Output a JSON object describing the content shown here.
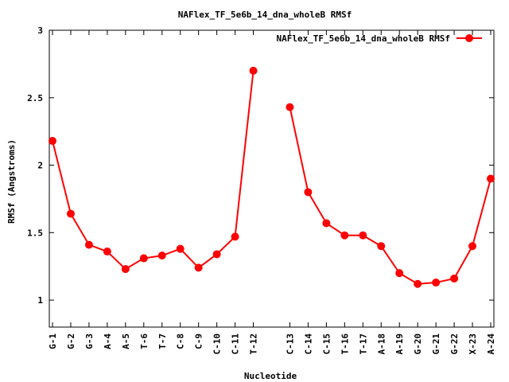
{
  "chart_data": {
    "type": "line",
    "title": "NAFlex_TF_5e6b_14_dna_wholeB RMSf",
    "xlabel": "Nucleotide",
    "ylabel": "RMSf (Angstroms)",
    "ylim": [
      0.8,
      3.0
    ],
    "yticks": [
      "1",
      "1.5",
      "2",
      "2.5",
      "3"
    ],
    "ytick_values": [
      1,
      1.5,
      2,
      2.5,
      3
    ],
    "legend_position": "top-right",
    "color": "#ff0000",
    "categories": [
      "G-1",
      "G-2",
      "G-3",
      "A-4",
      "A-5",
      "T-6",
      "T-7",
      "C-8",
      "C-9",
      "C-10",
      "C-11",
      "T-12",
      "",
      "C-13",
      "C-14",
      "C-15",
      "T-16",
      "T-17",
      "A-18",
      "A-19",
      "G-20",
      "G-21",
      "G-22",
      "X-23",
      "A-24"
    ],
    "series": [
      {
        "name": "NAFlex_TF_5e6b_14_dna_wholeB RMSf",
        "values": [
          2.18,
          1.64,
          1.41,
          1.36,
          1.23,
          1.31,
          1.33,
          1.38,
          1.24,
          1.34,
          1.47,
          2.7,
          null,
          2.43,
          1.8,
          1.57,
          1.48,
          1.48,
          1.4,
          1.2,
          1.12,
          1.13,
          1.16,
          1.4,
          1.9
        ]
      }
    ]
  }
}
